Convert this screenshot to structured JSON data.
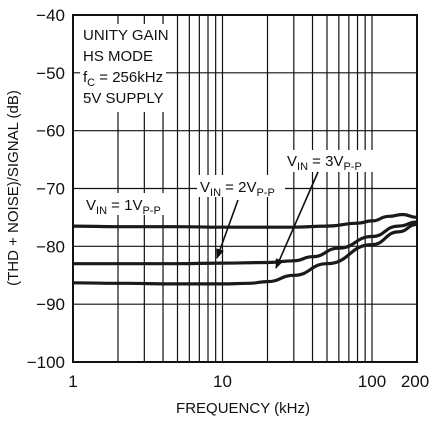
{
  "chart_data": {
    "type": "line",
    "xlabel": "FREQUENCY (kHz)",
    "ylabel": "(THD + NOISE)/SIGNAL (dB)",
    "xscale": "log",
    "xlim": [
      1,
      200
    ],
    "ylim": [
      -100,
      -40
    ],
    "x_ticks": [
      1,
      10,
      100,
      200
    ],
    "y_ticks": [
      -40,
      -50,
      -60,
      -70,
      -80,
      -90,
      -100
    ],
    "grid": true,
    "annotations": [
      "UNITY GAIN",
      "HS MODE",
      "f",
      "C",
      " = 256kHz",
      "5V SUPPLY"
    ],
    "series": [
      {
        "label_parts": [
          "V",
          "IN",
          " = 1V",
          "P-P"
        ],
        "x": [
          1,
          2,
          5,
          10,
          20,
          30,
          50,
          80,
          100,
          130,
          160,
          200
        ],
        "y": [
          -76.5,
          -76.6,
          -76.6,
          -76.7,
          -76.7,
          -76.7,
          -76.5,
          -76.0,
          -75.6,
          -74.8,
          -74.5,
          -75.0
        ]
      },
      {
        "label_parts": [
          "V",
          "IN",
          " = 2V",
          "P-P"
        ],
        "x": [
          1,
          2,
          5,
          10,
          20,
          30,
          40,
          60,
          100,
          150,
          200
        ],
        "y": [
          -83.0,
          -83.0,
          -83.0,
          -82.9,
          -82.8,
          -82.5,
          -81.8,
          -80.3,
          -78.3,
          -76.5,
          -75.8
        ]
      },
      {
        "label_parts": [
          "V",
          "IN",
          " = 3V",
          "P-P"
        ],
        "x": [
          1,
          2,
          5,
          10,
          15,
          20,
          30,
          50,
          100,
          150,
          200
        ],
        "y": [
          -86.3,
          -86.4,
          -86.5,
          -86.5,
          -86.4,
          -86.1,
          -85.0,
          -83.0,
          -79.7,
          -77.5,
          -76.2
        ]
      }
    ]
  }
}
